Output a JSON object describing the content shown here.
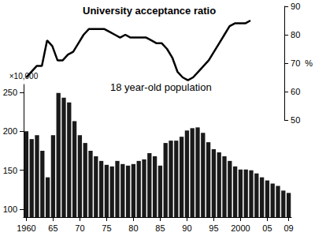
{
  "chart_data": {
    "type": "bar",
    "categories": [
      "1960",
      null,
      null,
      null,
      null,
      "65",
      null,
      null,
      null,
      null,
      "70",
      null,
      null,
      null,
      null,
      "75",
      null,
      null,
      null,
      null,
      "80",
      null,
      null,
      null,
      null,
      "85",
      null,
      null,
      null,
      null,
      "90",
      null,
      null,
      null,
      null,
      "95",
      null,
      null,
      null,
      null,
      "2000",
      null,
      null,
      null,
      null,
      "05",
      null,
      null,
      null,
      "09"
    ],
    "series": [
      {
        "name": "18 year-old population",
        "type": "bar",
        "color": "#1a1a1a",
        "values": [
          200,
          190,
          195,
          175,
          141,
          195,
          249,
          243,
          237,
          213,
          195,
          185,
          175,
          168,
          162,
          157,
          155,
          162,
          158,
          156,
          158,
          162,
          164,
          172,
          168,
          156,
          185,
          188,
          188,
          193,
          201,
          204,
          205,
          198,
          186,
          177,
          173,
          168,
          162,
          155,
          151,
          151,
          150,
          146,
          141,
          137,
          133,
          130,
          124,
          121
        ]
      },
      {
        "name": "University acceptance ratio",
        "type": "line",
        "color": "#000000",
        "axis": "y2",
        "values": [
          65,
          67,
          69,
          69,
          78,
          76,
          71,
          71,
          73,
          74,
          77,
          80,
          82,
          82,
          82,
          82,
          81,
          80,
          79,
          80,
          79,
          79,
          79,
          79,
          78,
          77,
          77,
          75,
          72,
          67,
          65,
          64,
          65,
          67,
          69,
          71,
          74,
          77,
          80,
          83,
          84,
          84,
          84,
          85,
          null,
          null,
          null,
          null,
          null,
          null
        ]
      }
    ],
    "ylabel": "×10,000",
    "y2label": "%",
    "ylim": [
      90,
      260
    ],
    "yticks": [
      100,
      150,
      200,
      250
    ],
    "y2lim": [
      50,
      90
    ],
    "y2ticks": [
      50,
      60,
      70,
      80,
      90
    ],
    "grid": false
  }
}
